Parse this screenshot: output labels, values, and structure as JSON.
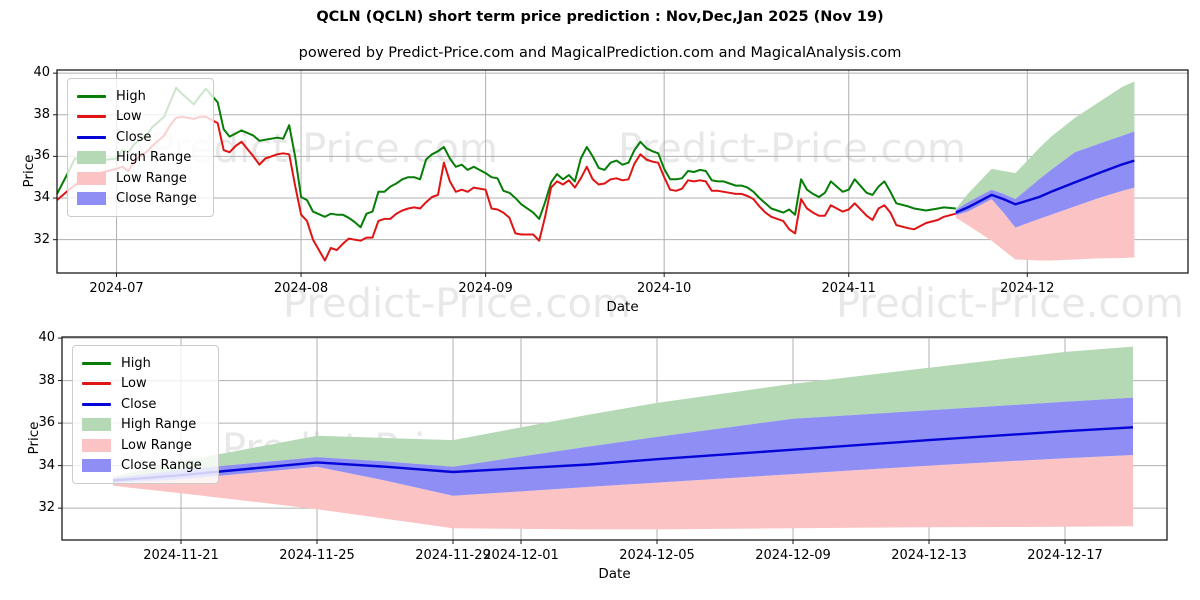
{
  "title": "QCLN (QCLN) short term price prediction : Nov,Dec,Jan 2025 (Nov 19)",
  "subtitle": "powered by Predict-Price.com and MagicalPrediction.com and MagicalAnalysis.com",
  "watermark_text": "Predict-Price.com",
  "colors": {
    "high_line": "#067d06",
    "low_line": "#e01414",
    "close_line": "#0505d8",
    "high_band": "#b5d9b5",
    "low_band": "#fbc3c3",
    "close_band": "#8e8ef5",
    "grid": "#b0b0b0",
    "spine": "#1a1a1a",
    "text": "#000000"
  },
  "legend": {
    "items": [
      {
        "label": "High",
        "type": "line",
        "color": "high_line"
      },
      {
        "label": "Low",
        "type": "line",
        "color": "low_line"
      },
      {
        "label": "Close",
        "type": "line",
        "color": "close_line"
      },
      {
        "label": "High Range",
        "type": "fill",
        "color": "high_band"
      },
      {
        "label": "Low Range",
        "type": "fill",
        "color": "low_band"
      },
      {
        "label": "Close Range",
        "type": "fill",
        "color": "close_band"
      }
    ]
  },
  "chart_data": [
    {
      "type": "line",
      "name": "history-with-forecast",
      "ylabel": "Price",
      "xlabel": "Date",
      "ylim": [
        30.4,
        40.15
      ],
      "yticks": [
        32,
        34,
        36,
        38,
        40
      ],
      "xdomain": [
        "2024-06-21",
        "2024-12-28"
      ],
      "xticks": [
        {
          "date": "2024-07-01",
          "label": "2024-07"
        },
        {
          "date": "2024-08-01",
          "label": "2024-08"
        },
        {
          "date": "2024-09-01",
          "label": "2024-09"
        },
        {
          "date": "2024-10-01",
          "label": "2024-10"
        },
        {
          "date": "2024-11-01",
          "label": "2024-11"
        },
        {
          "date": "2024-12-01",
          "label": "2024-12"
        }
      ],
      "grid": true,
      "legend_position": "upper-left",
      "history": [
        [
          "2024-06-21",
          34.2,
          33.9
        ],
        [
          "2024-06-23",
          35.3,
          34.4
        ],
        [
          "2024-06-24",
          35.9,
          34.6
        ],
        [
          "2024-06-25",
          35.9,
          34.9
        ],
        [
          "2024-06-27",
          35.7,
          35.0
        ],
        [
          "2024-06-28",
          35.8,
          35.2
        ],
        [
          "2024-07-01",
          35.9,
          35.4
        ],
        [
          "2024-07-02",
          36.3,
          35.5
        ],
        [
          "2024-07-03",
          36.2,
          35.3
        ],
        [
          "2024-07-04",
          36.6,
          35.8
        ],
        [
          "2024-07-06",
          37.0,
          36.2
        ],
        [
          "2024-07-07",
          37.4,
          36.5
        ],
        [
          "2024-07-09",
          37.9,
          37.0
        ],
        [
          "2024-07-10",
          38.6,
          37.5
        ],
        [
          "2024-07-11",
          39.3,
          37.85
        ],
        [
          "2024-07-12",
          39.0,
          37.9
        ],
        [
          "2024-07-14",
          38.5,
          37.8
        ],
        [
          "2024-07-15",
          38.9,
          37.9
        ],
        [
          "2024-07-16",
          39.25,
          37.9
        ],
        [
          "2024-07-18",
          38.6,
          37.6
        ],
        [
          "2024-07-19",
          37.3,
          36.3
        ],
        [
          "2024-07-20",
          36.95,
          36.2
        ],
        [
          "2024-07-21",
          37.1,
          36.5
        ],
        [
          "2024-07-22",
          37.25,
          36.7
        ],
        [
          "2024-07-24",
          37.0,
          36.0
        ],
        [
          "2024-07-25",
          36.75,
          35.6
        ],
        [
          "2024-07-26",
          36.8,
          35.9
        ],
        [
          "2024-07-27",
          36.85,
          36.0
        ],
        [
          "2024-07-28",
          36.9,
          36.1
        ],
        [
          "2024-07-29",
          36.85,
          36.15
        ],
        [
          "2024-07-30",
          37.5,
          36.1
        ],
        [
          "2024-07-31",
          36.0,
          34.6
        ],
        [
          "2024-08-01",
          34.05,
          33.2
        ],
        [
          "2024-08-02",
          33.9,
          32.9
        ],
        [
          "2024-08-03",
          33.35,
          32.0
        ],
        [
          "2024-08-05",
          33.1,
          31.0
        ],
        [
          "2024-08-06",
          33.25,
          31.6
        ],
        [
          "2024-08-07",
          33.2,
          31.5
        ],
        [
          "2024-08-08",
          33.2,
          31.8
        ],
        [
          "2024-08-09",
          33.05,
          32.05
        ],
        [
          "2024-08-10",
          32.85,
          32.0
        ],
        [
          "2024-08-11",
          32.6,
          31.95
        ],
        [
          "2024-08-12",
          33.25,
          32.1
        ],
        [
          "2024-08-13",
          33.35,
          32.1
        ],
        [
          "2024-08-14",
          34.3,
          32.9
        ],
        [
          "2024-08-15",
          34.3,
          33.0
        ],
        [
          "2024-08-16",
          34.55,
          33.0
        ],
        [
          "2024-08-17",
          34.7,
          33.25
        ],
        [
          "2024-08-18",
          34.9,
          33.4
        ],
        [
          "2024-08-19",
          35.0,
          33.5
        ],
        [
          "2024-08-20",
          35.0,
          33.55
        ],
        [
          "2024-08-21",
          34.9,
          33.5
        ],
        [
          "2024-08-22",
          35.85,
          33.8
        ],
        [
          "2024-08-23",
          36.1,
          34.05
        ],
        [
          "2024-08-24",
          36.25,
          34.15
        ],
        [
          "2024-08-25",
          36.45,
          35.7
        ],
        [
          "2024-08-26",
          35.9,
          34.8
        ],
        [
          "2024-08-27",
          35.5,
          34.3
        ],
        [
          "2024-08-28",
          35.6,
          34.4
        ],
        [
          "2024-08-29",
          35.35,
          34.3
        ],
        [
          "2024-08-30",
          35.5,
          34.5
        ],
        [
          "2024-09-01",
          35.2,
          34.4
        ],
        [
          "2024-09-02",
          35.0,
          33.5
        ],
        [
          "2024-09-03",
          34.95,
          33.45
        ],
        [
          "2024-09-04",
          34.35,
          33.3
        ],
        [
          "2024-09-05",
          34.25,
          33.05
        ],
        [
          "2024-09-06",
          34.0,
          32.3
        ],
        [
          "2024-09-07",
          33.7,
          32.25
        ],
        [
          "2024-09-09",
          33.3,
          32.25
        ],
        [
          "2024-09-10",
          33.0,
          31.95
        ],
        [
          "2024-09-11",
          33.8,
          33.1
        ],
        [
          "2024-09-12",
          34.75,
          34.5
        ],
        [
          "2024-09-13",
          35.15,
          34.8
        ],
        [
          "2024-09-14",
          34.9,
          34.65
        ],
        [
          "2024-09-15",
          35.1,
          34.85
        ],
        [
          "2024-09-16",
          34.8,
          34.5
        ],
        [
          "2024-09-17",
          35.9,
          34.95
        ],
        [
          "2024-09-18",
          36.45,
          35.5
        ],
        [
          "2024-09-19",
          36.0,
          34.9
        ],
        [
          "2024-09-20",
          35.45,
          34.65
        ],
        [
          "2024-09-21",
          35.35,
          34.7
        ],
        [
          "2024-09-22",
          35.7,
          34.9
        ],
        [
          "2024-09-23",
          35.8,
          34.95
        ],
        [
          "2024-09-24",
          35.6,
          34.85
        ],
        [
          "2024-09-25",
          35.7,
          34.9
        ],
        [
          "2024-09-26",
          36.3,
          35.65
        ],
        [
          "2024-09-27",
          36.7,
          36.1
        ],
        [
          "2024-09-28",
          36.4,
          35.85
        ],
        [
          "2024-09-29",
          36.25,
          35.75
        ],
        [
          "2024-09-30",
          36.15,
          35.7
        ],
        [
          "2024-10-01",
          35.4,
          35.0
        ],
        [
          "2024-10-02",
          34.9,
          34.4
        ],
        [
          "2024-10-03",
          34.9,
          34.35
        ],
        [
          "2024-10-04",
          34.95,
          34.45
        ],
        [
          "2024-10-05",
          35.3,
          34.85
        ],
        [
          "2024-10-06",
          35.25,
          34.8
        ],
        [
          "2024-10-07",
          35.35,
          34.85
        ],
        [
          "2024-10-08",
          35.3,
          34.8
        ],
        [
          "2024-10-09",
          34.85,
          34.35
        ],
        [
          "2024-10-10",
          34.8,
          34.35
        ],
        [
          "2024-10-11",
          34.8,
          34.3
        ],
        [
          "2024-10-12",
          34.7,
          34.25
        ],
        [
          "2024-10-13",
          34.6,
          34.2
        ],
        [
          "2024-10-14",
          34.6,
          34.2
        ],
        [
          "2024-10-15",
          34.5,
          34.1
        ],
        [
          "2024-10-16",
          34.3,
          33.95
        ],
        [
          "2024-10-17",
          34.0,
          33.6
        ],
        [
          "2024-10-18",
          33.75,
          33.3
        ],
        [
          "2024-10-19",
          33.5,
          33.1
        ],
        [
          "2024-10-20",
          33.4,
          33.0
        ],
        [
          "2024-10-21",
          33.3,
          32.9
        ],
        [
          "2024-10-22",
          33.45,
          32.5
        ],
        [
          "2024-10-23",
          33.2,
          32.3
        ],
        [
          "2024-10-24",
          34.9,
          33.95
        ],
        [
          "2024-10-25",
          34.4,
          33.5
        ],
        [
          "2024-10-26",
          34.2,
          33.3
        ],
        [
          "2024-10-27",
          34.05,
          33.15
        ],
        [
          "2024-10-28",
          34.25,
          33.15
        ],
        [
          "2024-10-29",
          34.8,
          33.65
        ],
        [
          "2024-10-30",
          34.55,
          33.5
        ],
        [
          "2024-10-31",
          34.3,
          33.35
        ],
        [
          "2024-11-01",
          34.4,
          33.45
        ],
        [
          "2024-11-02",
          34.9,
          33.75
        ],
        [
          "2024-11-04",
          34.25,
          33.15
        ],
        [
          "2024-11-05",
          34.15,
          32.95
        ],
        [
          "2024-11-06",
          34.55,
          33.5
        ],
        [
          "2024-11-07",
          34.8,
          33.65
        ],
        [
          "2024-11-08",
          34.3,
          33.3
        ],
        [
          "2024-11-09",
          33.75,
          32.7
        ],
        [
          "2024-11-11",
          33.6,
          32.55
        ],
        [
          "2024-11-12",
          33.5,
          32.5
        ],
        [
          "2024-11-14",
          33.4,
          32.8
        ],
        [
          "2024-11-16",
          33.5,
          32.95
        ],
        [
          "2024-11-17",
          33.55,
          33.1
        ],
        [
          "2024-11-19",
          33.5,
          33.25
        ]
      ],
      "forecast": {
        "dates": [
          "2024-11-19",
          "2024-11-21",
          "2024-11-25",
          "2024-11-27",
          "2024-11-29",
          "2024-12-03",
          "2024-12-05",
          "2024-12-09",
          "2024-12-13",
          "2024-12-17",
          "2024-12-19"
        ],
        "close": [
          33.3,
          33.55,
          34.15,
          33.95,
          33.7,
          34.05,
          34.3,
          34.75,
          35.2,
          35.62,
          35.8
        ],
        "close_upper": [
          33.42,
          33.8,
          34.4,
          34.2,
          33.95,
          34.9,
          35.35,
          36.2,
          36.6,
          37.0,
          37.2
        ],
        "close_lower": [
          33.18,
          33.35,
          33.95,
          33.3,
          32.58,
          33.0,
          33.2,
          33.6,
          34.0,
          34.35,
          34.5
        ],
        "high_upper": [
          33.48,
          34.2,
          35.4,
          35.3,
          35.2,
          36.4,
          36.95,
          37.85,
          38.6,
          39.35,
          39.6
        ],
        "low_lower": [
          33.05,
          32.7,
          31.95,
          31.5,
          31.05,
          31.0,
          31.0,
          31.05,
          31.1,
          31.12,
          31.15
        ]
      }
    },
    {
      "type": "line",
      "name": "forecast-detail",
      "ylabel": "Price",
      "xlabel": "Date",
      "ylim": [
        30.5,
        40.05
      ],
      "yticks": [
        32,
        34,
        36,
        38,
        40
      ],
      "xdomain": [
        "2024-11-17T12:00:00",
        "2024-12-20T00:00:00"
      ],
      "xticks": [
        {
          "date": "2024-11-21",
          "label": "2024-11-21"
        },
        {
          "date": "2024-11-25",
          "label": "2024-11-25"
        },
        {
          "date": "2024-11-29",
          "label": "2024-11-29"
        },
        {
          "date": "2024-12-01",
          "label": "2024-12-01"
        },
        {
          "date": "2024-12-05",
          "label": "2024-12-05"
        },
        {
          "date": "2024-12-09",
          "label": "2024-12-09"
        },
        {
          "date": "2024-12-13",
          "label": "2024-12-13"
        },
        {
          "date": "2024-12-17",
          "label": "2024-12-17"
        }
      ],
      "grid": true,
      "legend_position": "upper-left",
      "history": [],
      "forecast": {
        "dates": [
          "2024-11-19",
          "2024-11-21",
          "2024-11-25",
          "2024-11-27",
          "2024-11-29",
          "2024-12-03",
          "2024-12-05",
          "2024-12-09",
          "2024-12-13",
          "2024-12-17",
          "2024-12-19"
        ],
        "close": [
          33.3,
          33.55,
          34.15,
          33.95,
          33.7,
          34.05,
          34.3,
          34.75,
          35.2,
          35.62,
          35.8
        ],
        "close_upper": [
          33.42,
          33.8,
          34.4,
          34.2,
          33.95,
          34.9,
          35.35,
          36.2,
          36.6,
          37.0,
          37.2
        ],
        "close_lower": [
          33.18,
          33.35,
          33.95,
          33.3,
          32.58,
          33.0,
          33.2,
          33.6,
          34.0,
          34.35,
          34.5
        ],
        "high_upper": [
          33.48,
          34.2,
          35.4,
          35.3,
          35.2,
          36.4,
          36.95,
          37.85,
          38.6,
          39.35,
          39.6
        ],
        "low_lower": [
          33.05,
          32.7,
          31.95,
          31.5,
          31.05,
          31.0,
          31.0,
          31.05,
          31.1,
          31.12,
          31.15
        ]
      }
    }
  ]
}
